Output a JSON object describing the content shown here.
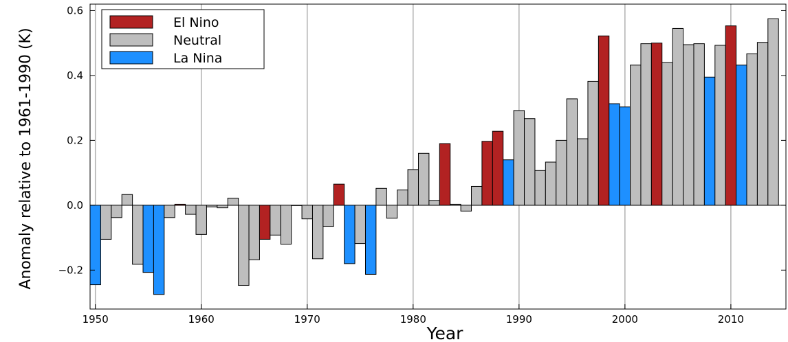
{
  "chart_data": {
    "type": "bar",
    "title": "",
    "xlabel": "Year",
    "ylabel": "Anomaly relative to 1961-1990 (K)",
    "xlim": [
      1949.5,
      2015.2
    ],
    "ylim": [
      -0.32,
      0.62
    ],
    "xticks": [
      1950,
      1960,
      1970,
      1980,
      1990,
      2000,
      2010
    ],
    "yticks": [
      -0.2,
      0.0,
      0.2,
      0.4,
      0.6
    ],
    "ytick_labels": [
      "−0.2",
      "0.0",
      "0.2",
      "0.4",
      "0.6"
    ],
    "grid": "vertical",
    "legend_position": "top-left",
    "colors": {
      "El Nino": "#b22222",
      "Neutral": "#bebebe",
      "La Nina": "#1e90ff"
    },
    "legend": [
      "El Nino",
      "Neutral",
      "La Nina"
    ],
    "bars": [
      {
        "year": 1950,
        "value": -0.245,
        "category": "La Nina"
      },
      {
        "year": 1951,
        "value": -0.105,
        "category": "Neutral"
      },
      {
        "year": 1952,
        "value": -0.038,
        "category": "Neutral"
      },
      {
        "year": 1953,
        "value": 0.033,
        "category": "Neutral"
      },
      {
        "year": 1954,
        "value": -0.182,
        "category": "Neutral"
      },
      {
        "year": 1955,
        "value": -0.207,
        "category": "La Nina"
      },
      {
        "year": 1956,
        "value": -0.275,
        "category": "La Nina"
      },
      {
        "year": 1957,
        "value": -0.038,
        "category": "Neutral"
      },
      {
        "year": 1958,
        "value": 0.003,
        "category": "El Nino"
      },
      {
        "year": 1959,
        "value": -0.028,
        "category": "Neutral"
      },
      {
        "year": 1960,
        "value": -0.09,
        "category": "Neutral"
      },
      {
        "year": 1961,
        "value": -0.005,
        "category": "Neutral"
      },
      {
        "year": 1962,
        "value": -0.008,
        "category": "Neutral"
      },
      {
        "year": 1963,
        "value": 0.022,
        "category": "Neutral"
      },
      {
        "year": 1964,
        "value": -0.247,
        "category": "Neutral"
      },
      {
        "year": 1965,
        "value": -0.168,
        "category": "Neutral"
      },
      {
        "year": 1966,
        "value": -0.105,
        "category": "El Nino"
      },
      {
        "year": 1967,
        "value": -0.092,
        "category": "Neutral"
      },
      {
        "year": 1968,
        "value": -0.12,
        "category": "Neutral"
      },
      {
        "year": 1969,
        "value": 0.0,
        "category": "Neutral"
      },
      {
        "year": 1970,
        "value": -0.042,
        "category": "Neutral"
      },
      {
        "year": 1971,
        "value": -0.165,
        "category": "Neutral"
      },
      {
        "year": 1972,
        "value": -0.065,
        "category": "Neutral"
      },
      {
        "year": 1973,
        "value": 0.065,
        "category": "El Nino"
      },
      {
        "year": 1974,
        "value": -0.18,
        "category": "La Nina"
      },
      {
        "year": 1975,
        "value": -0.118,
        "category": "Neutral"
      },
      {
        "year": 1976,
        "value": -0.213,
        "category": "La Nina"
      },
      {
        "year": 1977,
        "value": 0.052,
        "category": "Neutral"
      },
      {
        "year": 1978,
        "value": -0.04,
        "category": "Neutral"
      },
      {
        "year": 1979,
        "value": 0.047,
        "category": "Neutral"
      },
      {
        "year": 1980,
        "value": 0.11,
        "category": "Neutral"
      },
      {
        "year": 1981,
        "value": 0.16,
        "category": "Neutral"
      },
      {
        "year": 1982,
        "value": 0.015,
        "category": "Neutral"
      },
      {
        "year": 1983,
        "value": 0.19,
        "category": "El Nino"
      },
      {
        "year": 1984,
        "value": 0.003,
        "category": "Neutral"
      },
      {
        "year": 1985,
        "value": -0.018,
        "category": "Neutral"
      },
      {
        "year": 1986,
        "value": 0.058,
        "category": "Neutral"
      },
      {
        "year": 1987,
        "value": 0.197,
        "category": "El Nino"
      },
      {
        "year": 1988,
        "value": 0.228,
        "category": "El Nino"
      },
      {
        "year": 1989,
        "value": 0.14,
        "category": "La Nina"
      },
      {
        "year": 1990,
        "value": 0.292,
        "category": "Neutral"
      },
      {
        "year": 1991,
        "value": 0.267,
        "category": "Neutral"
      },
      {
        "year": 1992,
        "value": 0.107,
        "category": "Neutral"
      },
      {
        "year": 1993,
        "value": 0.133,
        "category": "Neutral"
      },
      {
        "year": 1994,
        "value": 0.2,
        "category": "Neutral"
      },
      {
        "year": 1995,
        "value": 0.328,
        "category": "Neutral"
      },
      {
        "year": 1996,
        "value": 0.205,
        "category": "Neutral"
      },
      {
        "year": 1997,
        "value": 0.382,
        "category": "Neutral"
      },
      {
        "year": 1998,
        "value": 0.522,
        "category": "El Nino"
      },
      {
        "year": 1999,
        "value": 0.313,
        "category": "La Nina"
      },
      {
        "year": 2000,
        "value": 0.303,
        "category": "La Nina"
      },
      {
        "year": 2001,
        "value": 0.432,
        "category": "Neutral"
      },
      {
        "year": 2002,
        "value": 0.498,
        "category": "Neutral"
      },
      {
        "year": 2003,
        "value": 0.5,
        "category": "El Nino"
      },
      {
        "year": 2004,
        "value": 0.44,
        "category": "Neutral"
      },
      {
        "year": 2005,
        "value": 0.545,
        "category": "Neutral"
      },
      {
        "year": 2006,
        "value": 0.495,
        "category": "Neutral"
      },
      {
        "year": 2007,
        "value": 0.498,
        "category": "Neutral"
      },
      {
        "year": 2008,
        "value": 0.395,
        "category": "La Nina"
      },
      {
        "year": 2009,
        "value": 0.493,
        "category": "Neutral"
      },
      {
        "year": 2010,
        "value": 0.553,
        "category": "El Nino"
      },
      {
        "year": 2011,
        "value": 0.432,
        "category": "La Nina"
      },
      {
        "year": 2012,
        "value": 0.467,
        "category": "Neutral"
      },
      {
        "year": 2013,
        "value": 0.502,
        "category": "Neutral"
      },
      {
        "year": 2014,
        "value": 0.575,
        "category": "Neutral"
      }
    ]
  }
}
